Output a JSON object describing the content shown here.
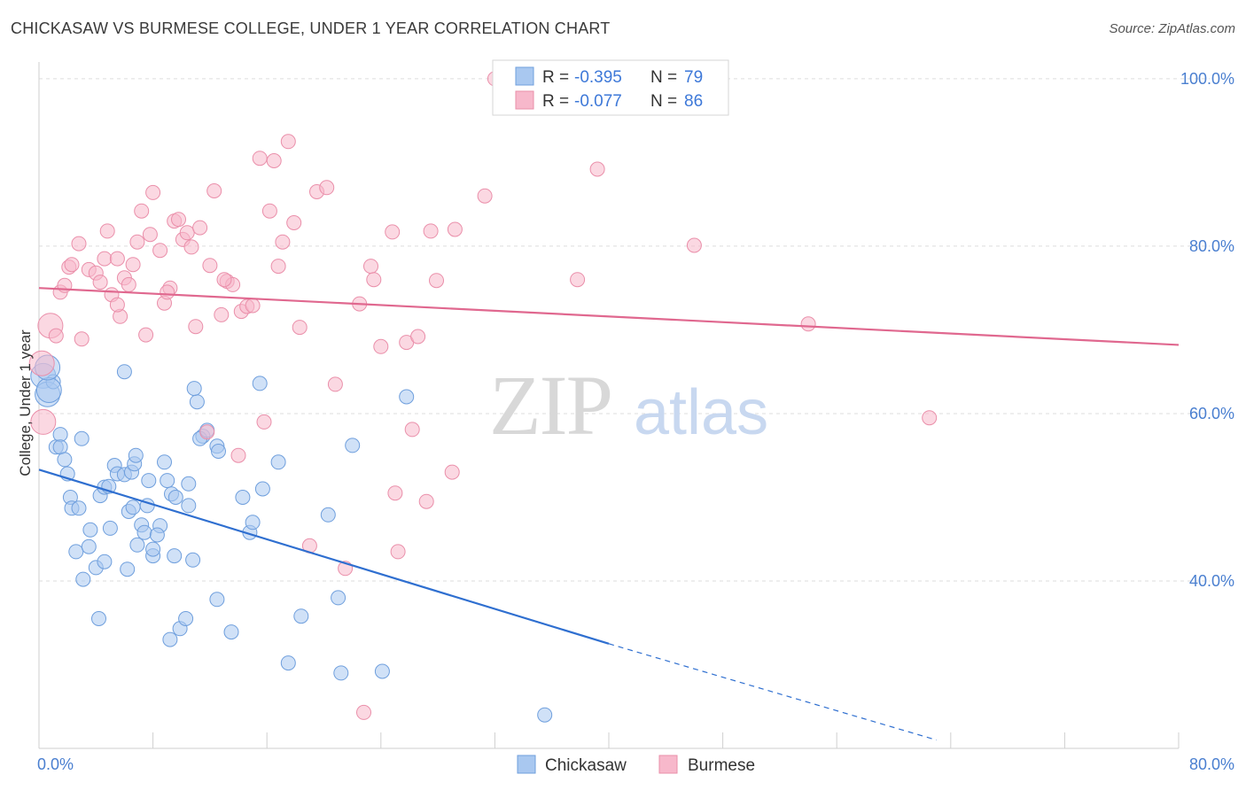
{
  "header": {
    "title": "CHICKASAW VS BURMESE COLLEGE, UNDER 1 YEAR CORRELATION CHART",
    "source": "Source: ZipAtlas.com"
  },
  "watermark": {
    "zip": "ZIP",
    "atlas": "atlas"
  },
  "legend_box": {
    "rows": [
      {
        "r_label": "R = ",
        "r_value": "-0.395",
        "n_label": "N = ",
        "n_value": "79",
        "color": "#a9c8f0"
      },
      {
        "r_label": "R = ",
        "r_value": "-0.077",
        "n_label": "N = ",
        "n_value": "86",
        "color": "#f7b8cb"
      }
    ]
  },
  "bottom_legend": [
    {
      "label": "Chickasaw",
      "color": "#a9c8f0"
    },
    {
      "label": "Burmese",
      "color": "#f7b8cb"
    }
  ],
  "chart_data": {
    "type": "scatter",
    "title": "CHICKASAW VS BURMESE COLLEGE, UNDER 1 YEAR CORRELATION CHART",
    "xlabel": "",
    "ylabel": "College, Under 1 year",
    "xlim": [
      0,
      80
    ],
    "ylim": [
      20,
      102
    ],
    "x_tick_labels": [
      "0.0%",
      "80.0%"
    ],
    "y_ticks": [
      40,
      60,
      80,
      100
    ],
    "y_tick_labels": [
      "40.0%",
      "60.0%",
      "80.0%",
      "100.0%"
    ],
    "grid": true,
    "legend_position": "top-center",
    "series": [
      {
        "name": "Chickasaw",
        "color": "#a9c8f0",
        "stroke": "#6f9fdd",
        "r": -0.395,
        "n": 79,
        "trend": {
          "x0": 0,
          "y0": 53.3,
          "x1": 40,
          "y1": 32.5,
          "dash_to_x": 63,
          "dash_to_y": 21.0
        },
        "points": [
          [
            0.3,
            64.5
          ],
          [
            0.6,
            62.3
          ],
          [
            1.0,
            63.8
          ],
          [
            0.7,
            62.8
          ],
          [
            1.2,
            56.0
          ],
          [
            1.5,
            57.5
          ],
          [
            1.5,
            56.0
          ],
          [
            1.8,
            54.5
          ],
          [
            2.0,
            52.8
          ],
          [
            2.2,
            50.0
          ],
          [
            2.3,
            48.7
          ],
          [
            2.8,
            48.7
          ],
          [
            2.6,
            43.5
          ],
          [
            3.1,
            40.2
          ],
          [
            3.5,
            44.1
          ],
          [
            3.6,
            46.1
          ],
          [
            4.0,
            41.6
          ],
          [
            4.3,
            50.2
          ],
          [
            4.6,
            42.3
          ],
          [
            4.6,
            51.2
          ],
          [
            4.9,
            51.3
          ],
          [
            5.0,
            46.3
          ],
          [
            5.3,
            53.8
          ],
          [
            5.5,
            52.8
          ],
          [
            4.2,
            35.5
          ],
          [
            6.0,
            52.7
          ],
          [
            6.2,
            41.4
          ],
          [
            6.3,
            48.3
          ],
          [
            6.5,
            53.0
          ],
          [
            6.7,
            54.0
          ],
          [
            6.6,
            48.8
          ],
          [
            6.9,
            44.3
          ],
          [
            7.2,
            46.7
          ],
          [
            7.4,
            45.8
          ],
          [
            7.6,
            49.0
          ],
          [
            7.7,
            52.0
          ],
          [
            8.0,
            43.0
          ],
          [
            8.0,
            43.8
          ],
          [
            8.5,
            46.6
          ],
          [
            8.8,
            54.2
          ],
          [
            9.3,
            50.4
          ],
          [
            9.5,
            43.0
          ],
          [
            9.6,
            50.0
          ],
          [
            9.9,
            34.3
          ],
          [
            10.5,
            51.6
          ],
          [
            10.8,
            42.5
          ],
          [
            11.1,
            61.4
          ],
          [
            11.5,
            57.3
          ],
          [
            11.3,
            57.0
          ],
          [
            12.5,
            56.1
          ],
          [
            12.6,
            55.5
          ],
          [
            14.3,
            50.0
          ],
          [
            14.8,
            45.8
          ],
          [
            15.0,
            47.0
          ],
          [
            15.7,
            51.0
          ],
          [
            16.8,
            54.2
          ],
          [
            17.5,
            30.2
          ],
          [
            18.4,
            35.8
          ],
          [
            20.3,
            47.9
          ],
          [
            21.0,
            38.0
          ],
          [
            21.2,
            29.0
          ],
          [
            22.0,
            56.2
          ],
          [
            24.1,
            29.2
          ],
          [
            25.8,
            62.0
          ],
          [
            35.5,
            24.0
          ],
          [
            6.0,
            65.0
          ],
          [
            10.9,
            63.0
          ],
          [
            15.5,
            63.6
          ],
          [
            10.3,
            35.5
          ],
          [
            9.2,
            33.0
          ],
          [
            13.5,
            33.9
          ],
          [
            12.5,
            37.8
          ],
          [
            8.3,
            45.5
          ],
          [
            11.8,
            58.0
          ],
          [
            0.6,
            65.5
          ],
          [
            3.0,
            57.0
          ],
          [
            6.8,
            55.0
          ],
          [
            9.0,
            52.0
          ],
          [
            10.5,
            49.0
          ]
        ]
      },
      {
        "name": "Burmese",
        "color": "#f7b8cb",
        "stroke": "#ea8faa",
        "r": -0.077,
        "n": 86,
        "trend": {
          "x0": 0,
          "y0": 75.0,
          "x1": 80,
          "y1": 68.2
        },
        "points": [
          [
            0.2,
            66.0
          ],
          [
            0.3,
            59.0
          ],
          [
            0.8,
            70.5
          ],
          [
            1.2,
            69.3
          ],
          [
            1.5,
            74.5
          ],
          [
            1.8,
            75.3
          ],
          [
            2.1,
            77.5
          ],
          [
            2.3,
            77.8
          ],
          [
            2.8,
            80.3
          ],
          [
            3.0,
            68.9
          ],
          [
            3.5,
            77.2
          ],
          [
            4.0,
            76.8
          ],
          [
            4.3,
            75.7
          ],
          [
            4.6,
            78.5
          ],
          [
            4.8,
            81.8
          ],
          [
            5.1,
            74.2
          ],
          [
            5.5,
            78.5
          ],
          [
            5.7,
            71.6
          ],
          [
            6.0,
            76.2
          ],
          [
            6.3,
            75.4
          ],
          [
            6.6,
            77.8
          ],
          [
            6.9,
            80.5
          ],
          [
            7.2,
            84.2
          ],
          [
            7.5,
            69.4
          ],
          [
            7.8,
            81.4
          ],
          [
            8.0,
            86.4
          ],
          [
            8.5,
            79.5
          ],
          [
            8.8,
            73.2
          ],
          [
            9.2,
            75.0
          ],
          [
            9.5,
            83.0
          ],
          [
            9.8,
            83.2
          ],
          [
            10.1,
            80.8
          ],
          [
            10.4,
            81.6
          ],
          [
            10.7,
            79.9
          ],
          [
            11.0,
            70.4
          ],
          [
            11.3,
            82.2
          ],
          [
            11.8,
            57.8
          ],
          [
            12.0,
            77.7
          ],
          [
            12.3,
            86.6
          ],
          [
            12.8,
            71.8
          ],
          [
            13.2,
            75.8
          ],
          [
            13.6,
            75.4
          ],
          [
            14.0,
            55.0
          ],
          [
            14.2,
            72.2
          ],
          [
            14.6,
            72.8
          ],
          [
            15.0,
            72.9
          ],
          [
            15.5,
            90.5
          ],
          [
            15.8,
            59.0
          ],
          [
            16.2,
            84.2
          ],
          [
            16.5,
            90.2
          ],
          [
            16.8,
            77.6
          ],
          [
            17.1,
            80.5
          ],
          [
            17.5,
            92.5
          ],
          [
            17.9,
            82.8
          ],
          [
            18.3,
            70.3
          ],
          [
            19.0,
            44.2
          ],
          [
            19.5,
            86.5
          ],
          [
            20.2,
            87.0
          ],
          [
            20.8,
            63.5
          ],
          [
            21.5,
            41.5
          ],
          [
            22.5,
            73.1
          ],
          [
            22.8,
            24.3
          ],
          [
            23.3,
            77.6
          ],
          [
            23.5,
            76.0
          ],
          [
            24.0,
            68.0
          ],
          [
            24.8,
            81.7
          ],
          [
            25.0,
            50.5
          ],
          [
            25.2,
            43.5
          ],
          [
            25.8,
            68.5
          ],
          [
            26.2,
            58.1
          ],
          [
            26.6,
            69.2
          ],
          [
            27.2,
            49.5
          ],
          [
            27.5,
            81.8
          ],
          [
            27.9,
            75.9
          ],
          [
            29.0,
            53.0
          ],
          [
            29.2,
            82.0
          ],
          [
            31.3,
            86.0
          ],
          [
            32.0,
            100.0
          ],
          [
            37.8,
            76.0
          ],
          [
            39.2,
            89.2
          ],
          [
            46.0,
            80.1
          ],
          [
            54.0,
            70.7
          ],
          [
            62.5,
            59.5
          ],
          [
            13.0,
            76.0
          ],
          [
            9.0,
            74.5
          ],
          [
            5.5,
            73.0
          ]
        ]
      }
    ]
  }
}
